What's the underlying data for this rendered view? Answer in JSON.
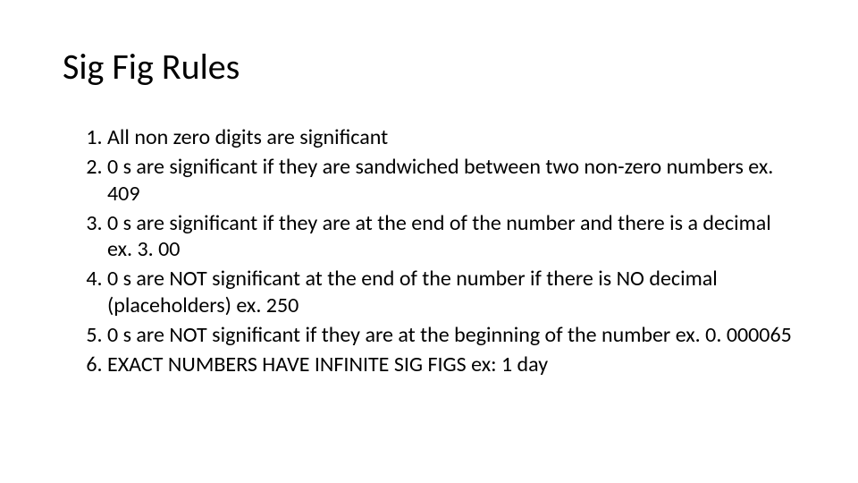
{
  "slide": {
    "title": "Sig Fig Rules",
    "title_fontsize": 40,
    "body_fontsize": 24,
    "text_color": "#000000",
    "background_color": "#ffffff",
    "rules": [
      "All non zero digits are significant",
      "0 s are significant if they are sandwiched between two non-zero numbers ex. 409",
      "0 s are significant if they are at the end of the number and there is a decimal  ex. 3. 00",
      "0 s are NOT significant at the end of the number if there is NO decimal (placeholders) ex. 250",
      "0 s are NOT significant if they are at the beginning of the number ex. 0. 000065",
      "EXACT NUMBERS HAVE INFINITE SIG FIGS ex: 1 day"
    ]
  }
}
